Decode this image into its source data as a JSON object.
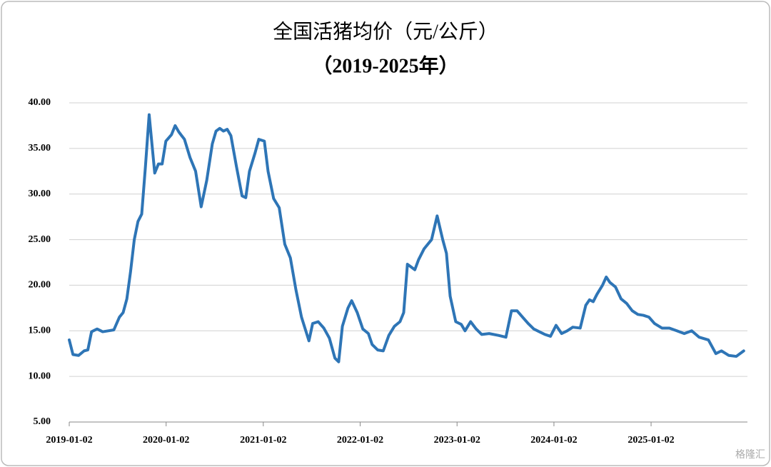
{
  "chart_data": {
    "type": "line",
    "title": "全国活猪均价（元/公斤）",
    "subtitle": "（2019-2025年）",
    "watermark": "格隆汇",
    "grid": true,
    "xlim": [
      "2019-01-02",
      "2025-12-31"
    ],
    "xticks": [
      "2019-01-02",
      "2020-01-02",
      "2021-01-02",
      "2022-01-02",
      "2023-01-02",
      "2024-01-02",
      "2025-01-02"
    ],
    "ylim": [
      5,
      40
    ],
    "yticks": [
      {
        "value": 5,
        "label": "5.00"
      },
      {
        "value": 10,
        "label": "10.00"
      },
      {
        "value": 15,
        "label": "15.00"
      },
      {
        "value": 20,
        "label": "20.00"
      },
      {
        "value": 25,
        "label": "25.00"
      },
      {
        "value": 30,
        "label": "30.00"
      },
      {
        "value": 35,
        "label": "35.00"
      },
      {
        "value": 40,
        "label": "40.00"
      }
    ],
    "x": [
      "2019-01-02",
      "2019-01-16",
      "2019-02-06",
      "2019-02-27",
      "2019-03-13",
      "2019-03-27",
      "2019-04-17",
      "2019-05-08",
      "2019-05-29",
      "2019-06-19",
      "2019-07-10",
      "2019-07-24",
      "2019-08-07",
      "2019-08-21",
      "2019-09-04",
      "2019-09-18",
      "2019-10-02",
      "2019-10-16",
      "2019-10-30",
      "2019-11-20",
      "2019-12-04",
      "2019-12-18",
      "2020-01-01",
      "2020-01-22",
      "2020-02-05",
      "2020-02-19",
      "2020-03-11",
      "2020-04-01",
      "2020-04-22",
      "2020-05-13",
      "2020-06-03",
      "2020-06-24",
      "2020-07-08",
      "2020-07-22",
      "2020-08-05",
      "2020-08-19",
      "2020-09-02",
      "2020-09-23",
      "2020-10-14",
      "2020-10-28",
      "2020-11-11",
      "2020-12-02",
      "2020-12-16",
      "2021-01-06",
      "2021-01-20",
      "2021-02-10",
      "2021-03-03",
      "2021-03-24",
      "2021-04-14",
      "2021-05-05",
      "2021-05-26",
      "2021-06-23",
      "2021-07-07",
      "2021-07-28",
      "2021-08-18",
      "2021-09-08",
      "2021-09-29",
      "2021-10-13",
      "2021-10-27",
      "2021-11-17",
      "2021-12-01",
      "2021-12-22",
      "2022-01-12",
      "2022-02-02",
      "2022-02-16",
      "2022-03-09",
      "2022-03-30",
      "2022-04-20",
      "2022-05-11",
      "2022-06-01",
      "2022-06-15",
      "2022-06-29",
      "2022-07-13",
      "2022-07-27",
      "2022-08-10",
      "2022-08-31",
      "2022-09-28",
      "2022-10-19",
      "2022-11-09",
      "2022-11-23",
      "2022-12-07",
      "2022-12-28",
      "2023-01-18",
      "2023-02-01",
      "2023-02-22",
      "2023-03-15",
      "2023-04-05",
      "2023-05-03",
      "2023-06-07",
      "2023-07-05",
      "2023-07-26",
      "2023-08-16",
      "2023-09-06",
      "2023-09-27",
      "2023-10-18",
      "2023-11-08",
      "2023-11-29",
      "2023-12-20",
      "2024-01-10",
      "2024-01-31",
      "2024-02-21",
      "2024-03-13",
      "2024-04-10",
      "2024-05-01",
      "2024-05-15",
      "2024-05-29",
      "2024-06-12",
      "2024-07-03",
      "2024-07-17",
      "2024-07-31",
      "2024-08-21",
      "2024-09-11",
      "2024-10-02",
      "2024-10-23",
      "2024-11-13",
      "2024-12-04",
      "2024-12-25",
      "2025-01-15",
      "2025-02-12",
      "2025-03-12",
      "2025-04-09",
      "2025-05-07",
      "2025-06-04",
      "2025-07-02",
      "2025-08-06",
      "2025-09-03",
      "2025-09-24",
      "2025-10-22",
      "2025-11-19",
      "2025-12-17"
    ],
    "series": [
      {
        "color": "#2e75b6",
        "values": [
          14.0,
          12.4,
          12.3,
          12.8,
          12.9,
          14.9,
          15.2,
          14.9,
          15.0,
          15.1,
          16.5,
          17.0,
          18.5,
          21.5,
          25.0,
          27.0,
          27.8,
          33.0,
          38.7,
          32.3,
          33.3,
          33.3,
          35.8,
          36.5,
          37.5,
          36.8,
          36.0,
          34.0,
          32.5,
          28.6,
          31.5,
          35.5,
          36.9,
          37.2,
          36.9,
          37.1,
          36.4,
          33.0,
          29.8,
          29.6,
          32.5,
          34.5,
          36.0,
          35.8,
          32.5,
          29.5,
          28.5,
          24.5,
          23.0,
          19.5,
          16.5,
          13.9,
          15.8,
          16.0,
          15.3,
          14.2,
          12.0,
          11.6,
          15.5,
          17.5,
          18.3,
          17.0,
          15.2,
          14.7,
          13.5,
          12.9,
          12.8,
          14.5,
          15.5,
          16.0,
          17.0,
          22.3,
          22.0,
          21.7,
          22.8,
          24.0,
          25.0,
          27.6,
          25.0,
          23.5,
          18.8,
          16.0,
          15.7,
          15.0,
          16.0,
          15.2,
          14.6,
          14.7,
          14.5,
          14.3,
          17.2,
          17.2,
          16.5,
          15.8,
          15.2,
          14.9,
          14.6,
          14.4,
          15.6,
          14.7,
          15.0,
          15.4,
          15.3,
          17.8,
          18.4,
          18.2,
          19.0,
          20.0,
          20.9,
          20.3,
          19.8,
          18.5,
          18.0,
          17.2,
          16.8,
          16.7,
          16.5,
          15.8,
          15.3,
          15.3,
          15.0,
          14.7,
          15.0,
          14.3,
          14.0,
          12.5,
          12.8,
          12.3,
          12.2,
          12.8
        ]
      }
    ]
  }
}
